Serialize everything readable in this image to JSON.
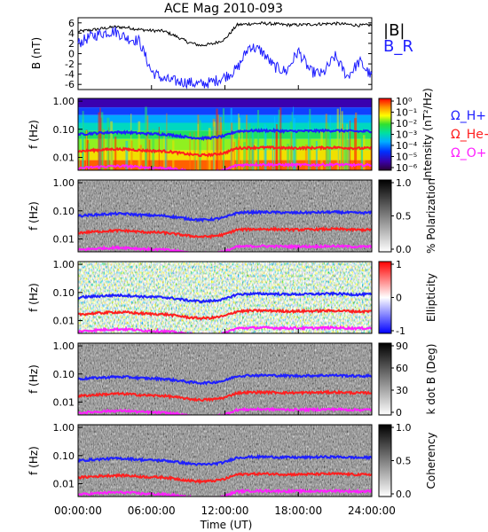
{
  "chart_data": {
    "title": "ACE Mag 2010-093",
    "xlabel": "Time (UT)",
    "x_ticks": [
      "00:00:00",
      "06:00:00",
      "12:00:00",
      "18:00:00",
      "24:00:00"
    ],
    "x_range_hours": [
      0,
      24
    ],
    "panels": [
      {
        "type": "line",
        "ylabel": "B (nT)",
        "ylim": [
          -7,
          7
        ],
        "y_ticks": [
          "6",
          "4",
          "2",
          "0",
          "-2",
          "-4",
          "-6"
        ],
        "legend": [
          "|B|",
          "B_R"
        ],
        "series": [
          {
            "name": "|B|",
            "color": "#000000",
            "x": [
              0,
              1,
              2,
              3,
              4,
              5,
              6,
              7,
              8,
              9,
              10,
              11,
              12,
              13,
              14,
              15,
              16,
              17,
              18,
              19,
              20,
              21,
              22,
              23,
              24
            ],
            "values": [
              4.3,
              4.6,
              4.9,
              5.2,
              5.1,
              4.7,
              4.5,
              4.4,
              3.4,
              2.2,
              1.6,
              1.9,
              2.8,
              5.6,
              5.8,
              5.9,
              5.8,
              5.6,
              5.6,
              5.7,
              5.8,
              5.9,
              5.7,
              5.5,
              5.6
            ]
          },
          {
            "name": "B_R",
            "color": "#1f1fff",
            "x": [
              0,
              1,
              2,
              3,
              4,
              5,
              6,
              7,
              8,
              9,
              10,
              11,
              12,
              13,
              14,
              15,
              16,
              17,
              18,
              19,
              20,
              21,
              22,
              23,
              24
            ],
            "values": [
              2.0,
              3.3,
              4.0,
              4.4,
              3.0,
              2.5,
              -3.5,
              -5.0,
              -5.4,
              -5.6,
              -6.0,
              -5.5,
              -4.5,
              -3.0,
              1.5,
              0.5,
              -2.5,
              -3.5,
              0.5,
              -3.5,
              -4.0,
              -0.5,
              -4.5,
              -1.5,
              -4.5
            ]
          }
        ]
      },
      {
        "type": "heatmap",
        "ylabel": "f (Hz)",
        "yscale": "log",
        "y_ticks": [
          "1.00",
          "0.10",
          "0.01"
        ],
        "colorbar": {
          "label": "Intensity (nT²/Hz)",
          "ticks": [
            "10⁰",
            "10⁻¹",
            "10⁻²",
            "10⁻³",
            "10⁻⁴",
            "10⁻⁵",
            "10⁻⁶"
          ]
        },
        "gyro_legend": [
          "Ω_H+",
          "Ω_He+",
          "Ω_O+"
        ]
      },
      {
        "type": "heatmap",
        "ylabel": "f (Hz)",
        "yscale": "log",
        "y_ticks": [
          "1.00",
          "0.10",
          "0.01"
        ],
        "colorbar": {
          "label": "% Polarization",
          "ticks": [
            "1.0",
            "0.5",
            "0.0"
          ]
        }
      },
      {
        "type": "heatmap",
        "ylabel": "f (Hz)",
        "yscale": "log",
        "y_ticks": [
          "1.00",
          "0.10",
          "0.01"
        ],
        "colorbar": {
          "label": "Ellipticity",
          "ticks": [
            "1",
            "0",
            "-1"
          ]
        }
      },
      {
        "type": "heatmap",
        "ylabel": "f (Hz)",
        "yscale": "log",
        "y_ticks": [
          "1.00",
          "0.10",
          "0.01"
        ],
        "colorbar": {
          "label": "k dot B (Deg)",
          "ticks": [
            "90",
            "60",
            "30",
            "0"
          ]
        }
      },
      {
        "type": "heatmap",
        "ylabel": "f (Hz)",
        "yscale": "log",
        "y_ticks": [
          "1.00",
          "0.10",
          "0.01"
        ],
        "colorbar": {
          "label": "Coherency",
          "ticks": [
            "1.0",
            "0.5",
            "0.0"
          ]
        }
      }
    ],
    "gyrofrequencies": {
      "x_hours": [
        0,
        1,
        2,
        3,
        4,
        5,
        6,
        7,
        8,
        9,
        10,
        11,
        12,
        13,
        14,
        15,
        16,
        17,
        18,
        19,
        20,
        21,
        22,
        23,
        24
      ],
      "series": [
        {
          "name": "Ω_H+",
          "color": "#1f1fff",
          "values": [
            0.066,
            0.071,
            0.075,
            0.079,
            0.078,
            0.072,
            0.069,
            0.067,
            0.06,
            0.052,
            0.048,
            0.05,
            0.058,
            0.085,
            0.089,
            0.09,
            0.089,
            0.086,
            0.086,
            0.087,
            0.089,
            0.09,
            0.087,
            0.084,
            0.086
          ]
        },
        {
          "name": "Ω_He+",
          "color": "#ff1f1f",
          "values": [
            0.0165,
            0.0177,
            0.0188,
            0.0198,
            0.0195,
            0.018,
            0.0172,
            0.0168,
            0.015,
            0.013,
            0.012,
            0.0125,
            0.0145,
            0.0212,
            0.0222,
            0.0225,
            0.0222,
            0.0215,
            0.0215,
            0.0218,
            0.0222,
            0.0225,
            0.0218,
            0.021,
            0.0215
          ]
        },
        {
          "name": "Ω_O+",
          "color": "#ff1fff",
          "values": [
            0.0041,
            0.0044,
            0.0047,
            0.0049,
            0.0049,
            0.0045,
            0.0043,
            0.0042,
            0.0038,
            0.0033,
            0.003,
            0.0031,
            0.0036,
            0.0053,
            0.0055,
            0.0056,
            0.0055,
            0.0054,
            0.0054,
            0.0054,
            0.0055,
            0.0056,
            0.0054,
            0.0053,
            0.0054
          ]
        }
      ]
    }
  }
}
